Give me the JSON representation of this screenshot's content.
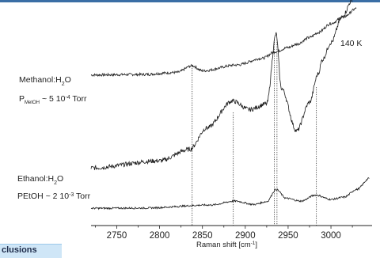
{
  "header_bar_color": "#3a6ea5",
  "section_tab": {
    "label": "clusions",
    "color": "#cfe6f7"
  },
  "chart_data": {
    "type": "line",
    "title": "",
    "xlabel": "Raman shift [cm",
    "xlabel_sup": "-1",
    "xlabel_end": "]",
    "ylabel": "",
    "xlim": [
      2720,
      3048
    ],
    "x_ticks": [
      2750,
      2800,
      2850,
      2900,
      2950,
      3000
    ],
    "x_tick_labels": [
      "2750",
      "2800",
      "2850",
      "2900",
      "2950",
      "3000"
    ],
    "grid": false,
    "line_color": "#1a1a1a",
    "series": [
      {
        "points": [
          [
            2720,
            0.3
          ],
          [
            2780,
            0.33
          ],
          [
            2820,
            0.45
          ],
          [
            2838,
            0.85
          ],
          [
            2850,
            0.55
          ],
          [
            2890,
            0.9
          ],
          [
            2920,
            1.3
          ],
          [
            2935,
            1.7
          ],
          [
            2950,
            1.95
          ],
          [
            2960,
            2.15
          ],
          [
            2975,
            2.55
          ],
          [
            2985,
            2.85
          ],
          [
            3000,
            3.4
          ],
          [
            3015,
            3.8
          ],
          [
            3030,
            4.3
          ]
        ]
      },
      {
        "points": [
          [
            2720,
            0.3
          ],
          [
            2800,
            0.55
          ],
          [
            2835,
            0.95
          ],
          [
            2855,
            1.7
          ],
          [
            2885,
            2.65
          ],
          [
            2905,
            2.35
          ],
          [
            2925,
            2.55
          ],
          [
            2936,
            5.0
          ],
          [
            2942,
            3.1
          ],
          [
            2960,
            1.6
          ],
          [
            2975,
            2.6
          ],
          [
            2985,
            3.6
          ],
          [
            2990,
            4.1
          ],
          [
            3000,
            4.7
          ],
          [
            3013,
            5.6
          ],
          [
            3025,
            6.2
          ]
        ]
      },
      {
        "points": [
          [
            2720,
            0.2
          ],
          [
            2780,
            0.22
          ],
          [
            2860,
            0.5
          ],
          [
            2888,
            0.85
          ],
          [
            2910,
            0.55
          ],
          [
            2925,
            0.8
          ],
          [
            2936,
            1.9
          ],
          [
            2948,
            1.1
          ],
          [
            2965,
            0.85
          ],
          [
            2982,
            1.4
          ],
          [
            3000,
            1.0
          ],
          [
            3015,
            1.2
          ],
          [
            3030,
            1.9
          ],
          [
            3045,
            2.9
          ]
        ]
      }
    ],
    "reference_lines_x": [
      2838,
      2886,
      2934,
      2937,
      2983
    ],
    "annotations": [
      {
        "id": "temperature",
        "text": "140 K"
      },
      {
        "id": "methanol-name",
        "parts": [
          "Methanol:H",
          "2",
          "O"
        ]
      },
      {
        "id": "methanol-pressure",
        "parts": [
          "P",
          "MetOH",
          " ~ 5 10",
          "-4",
          " Torr"
        ]
      },
      {
        "id": "ethanol-name",
        "parts": [
          "Ethanol:H",
          "2",
          "O"
        ]
      },
      {
        "id": "ethanol-pressure",
        "parts": [
          "PEtOH ~ 2 10",
          "-3",
          " Torr"
        ]
      }
    ]
  }
}
